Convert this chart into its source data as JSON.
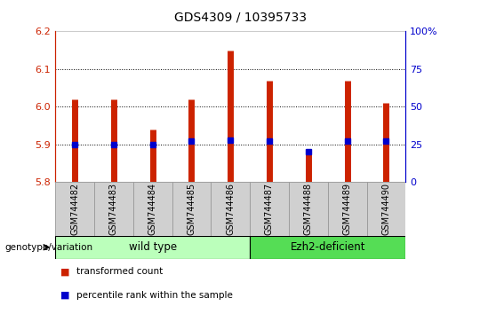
{
  "title": "GDS4309 / 10395733",
  "samples": [
    "GSM744482",
    "GSM744483",
    "GSM744484",
    "GSM744485",
    "GSM744486",
    "GSM744487",
    "GSM744488",
    "GSM744489",
    "GSM744490"
  ],
  "transformed_counts": [
    6.02,
    6.02,
    5.94,
    6.02,
    6.15,
    6.07,
    5.88,
    6.07,
    6.01
  ],
  "percentile_ranks": [
    25,
    25,
    25,
    27,
    28,
    27,
    20,
    27,
    27
  ],
  "ylim": [
    5.8,
    6.2
  ],
  "yticks": [
    5.8,
    5.9,
    6.0,
    6.1,
    6.2
  ],
  "right_yticks": [
    0,
    25,
    50,
    75,
    100
  ],
  "right_ylabels": [
    "0",
    "25",
    "50",
    "75",
    "100%"
  ],
  "bar_color": "#cc2200",
  "dot_color": "#0000cc",
  "baseline": 5.8,
  "groups": [
    {
      "label": "wild type",
      "start": 0,
      "end": 4,
      "color": "#bbffbb"
    },
    {
      "label": "Ezh2-deficient",
      "start": 5,
      "end": 8,
      "color": "#55dd55"
    }
  ],
  "genotype_label": "genotype/variation",
  "legend_items": [
    {
      "label": "transformed count",
      "color": "#cc2200"
    },
    {
      "label": "percentile rank within the sample",
      "color": "#0000cc"
    }
  ],
  "grid_color": "#000000",
  "background_color": "#ffffff",
  "tick_label_color_left": "#cc2200",
  "tick_label_color_right": "#0000cc",
  "tick_bg_color": "#d0d0d0",
  "tick_border_color": "#999999"
}
